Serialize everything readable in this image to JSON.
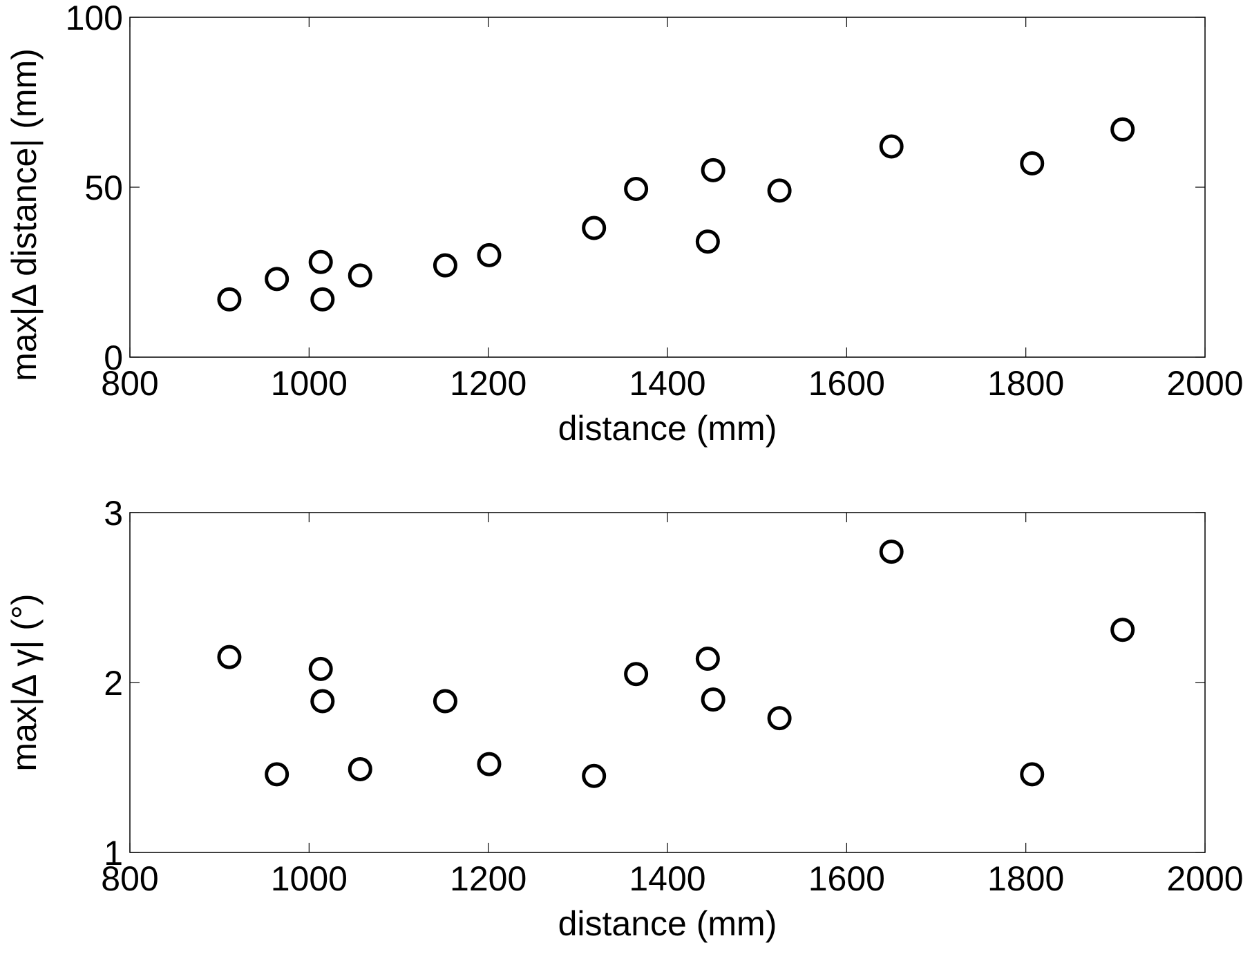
{
  "chart_data": [
    {
      "type": "scatter",
      "xlabel": "distance (mm)",
      "ylabel": "max|Δ distance| (mm)",
      "xlim": [
        800,
        2000
      ],
      "ylim": [
        0,
        100
      ],
      "xticks": [
        800,
        1000,
        1200,
        1400,
        1600,
        1800,
        2000
      ],
      "yticks": [
        0,
        50,
        100
      ],
      "grid": false,
      "marker": "open-circle",
      "series": [
        {
          "x": [
            911,
            964,
            1013,
            1015,
            1057,
            1152,
            1201,
            1318,
            1365,
            1445,
            1451,
            1525,
            1650,
            1807,
            1908
          ],
          "y": [
            17,
            23,
            28,
            17,
            24,
            27,
            30,
            38,
            49.5,
            34,
            55,
            49,
            62,
            57,
            67
          ]
        }
      ]
    },
    {
      "type": "scatter",
      "xlabel": "distance (mm)",
      "ylabel": "max|Δ γ| (°)",
      "xlim": [
        800,
        2000
      ],
      "ylim": [
        1,
        3
      ],
      "xticks": [
        800,
        1000,
        1200,
        1400,
        1600,
        1800,
        2000
      ],
      "yticks": [
        1,
        2,
        3
      ],
      "grid": false,
      "marker": "open-circle",
      "series": [
        {
          "x": [
            911,
            964,
            1013,
            1015,
            1057,
            1152,
            1201,
            1318,
            1365,
            1445,
            1451,
            1525,
            1650,
            1807,
            1908
          ],
          "y": [
            2.15,
            1.46,
            2.08,
            1.89,
            1.49,
            1.89,
            1.52,
            1.45,
            2.05,
            2.14,
            1.9,
            1.79,
            2.77,
            1.46,
            2.31
          ]
        }
      ]
    }
  ]
}
